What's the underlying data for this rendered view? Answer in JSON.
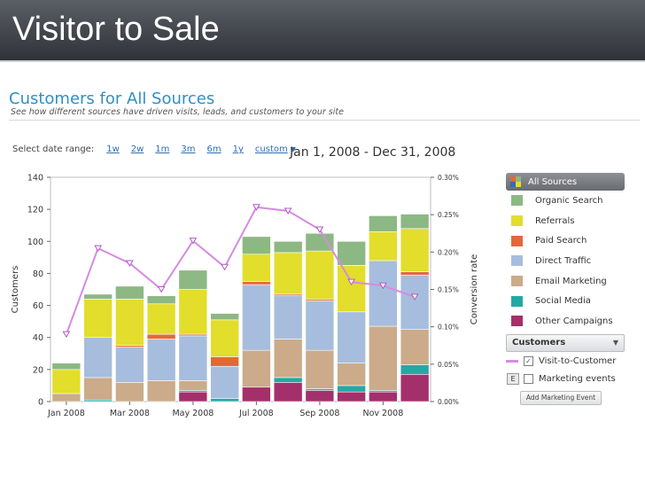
{
  "slide": {
    "title": "Visitor to Sale"
  },
  "header": {
    "title": "Customers for All Sources",
    "subtitle": "See how different sources have driven visits, leads, and customers to your site"
  },
  "date_selector": {
    "label": "Select date range:",
    "ranges": [
      "1w",
      "2w",
      "1m",
      "3m",
      "6m",
      "1y"
    ],
    "custom_label": "custom",
    "current_range": "Jan 1, 2008 - Dec 31, 2008"
  },
  "legend": {
    "all_sources": "All Sources",
    "series_labels": [
      "Organic Search",
      "Referrals",
      "Paid Search",
      "Direct Traffic",
      "Email Marketing",
      "Social Media",
      "Other Campaigns"
    ],
    "dropdown_value": "Customers",
    "visit_to_customer_label": "Visit-to-Customer",
    "marketing_events_label": "Marketing events",
    "add_event_button": "Add Marketing Event"
  },
  "chart_data": {
    "type": "bar",
    "stacked": true,
    "months": [
      "Jan 2008",
      "Feb 2008",
      "Mar 2008",
      "Apr 2008",
      "May 2008",
      "Jun 2008",
      "Jul 2008",
      "Aug 2008",
      "Sep 2008",
      "Oct 2008",
      "Nov 2008",
      "Dec 2008"
    ],
    "x_tick_labels": [
      "Jan 2008",
      "Mar 2008",
      "May 2008",
      "Jul 2008",
      "Sep 2008",
      "Nov 2008"
    ],
    "ylabel": "Customers",
    "ylim": [
      0,
      140
    ],
    "y_ticks": [
      "0",
      "20",
      "40",
      "60",
      "80",
      "100",
      "120",
      "140"
    ],
    "y2label": "Conversion rate",
    "y2lim": [
      0,
      0.3
    ],
    "y2_ticks": [
      "0.00%",
      "0.05%",
      "0.10%",
      "0.15%",
      "0.20%",
      "0.25%",
      "0.30%"
    ],
    "series": [
      {
        "name": "Other Campaigns",
        "color": "#a3306b",
        "values": [
          0,
          0,
          0,
          0,
          6,
          0,
          9,
          12,
          7,
          6,
          6,
          17
        ]
      },
      {
        "name": "Social Media",
        "color": "#23a9a3",
        "values": [
          0,
          1,
          0,
          0,
          1,
          2,
          0,
          3,
          1,
          4,
          1,
          6
        ]
      },
      {
        "name": "Email Marketing",
        "color": "#cbab89",
        "values": [
          5,
          14,
          12,
          13,
          6,
          0,
          23,
          24,
          24,
          14,
          40,
          22
        ]
      },
      {
        "name": "Direct Traffic",
        "color": "#a7bddd",
        "values": [
          0,
          25,
          22,
          26,
          28,
          20,
          41,
          27,
          31,
          32,
          41,
          34
        ]
      },
      {
        "name": "Paid Search",
        "color": "#e4673a",
        "values": [
          0,
          0,
          1,
          3,
          1,
          6,
          2,
          1,
          1,
          0,
          0,
          2
        ]
      },
      {
        "name": "Referrals",
        "color": "#e3dd2c",
        "values": [
          15,
          24,
          29,
          19,
          28,
          23,
          17,
          26,
          30,
          29,
          18,
          27
        ]
      },
      {
        "name": "Organic Search",
        "color": "#8cb883",
        "values": [
          4,
          3,
          8,
          5,
          12,
          4,
          11,
          7,
          11,
          15,
          10,
          9
        ]
      }
    ],
    "line": {
      "name": "Visit-to-Customer",
      "color": "#d58be2",
      "values": [
        0.09,
        0.205,
        0.185,
        0.15,
        0.215,
        0.18,
        0.26,
        0.255,
        0.23,
        0.16,
        0.155,
        0.14
      ]
    }
  }
}
